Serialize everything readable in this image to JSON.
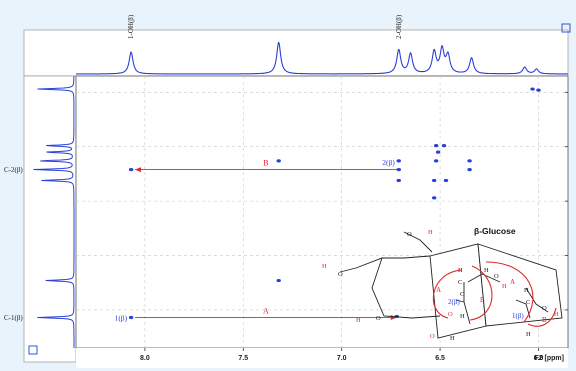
{
  "chart_data": {
    "type": "scatter",
    "subtype": "2D NMR COSY spectrum",
    "x_axis": {
      "unit_label": "F2 [ppm]",
      "range": [
        8.35,
        5.85
      ],
      "reversed": true,
      "ticks": [
        {
          "value": 8.0,
          "label": "8.0"
        },
        {
          "value": 7.5,
          "label": "7.5"
        },
        {
          "value": 7.0,
          "label": "7.0"
        },
        {
          "value": 6.5,
          "label": "6.5"
        },
        {
          "value": 6.0,
          "label": "6.0"
        }
      ]
    },
    "y_axis": {
      "range": [
        8.35,
        5.85
      ],
      "reversed": false,
      "tick_values": [
        8.0,
        7.5,
        7.0,
        6.5,
        6.0
      ]
    },
    "top_trace": {
      "baseline": 0,
      "peaks": [
        {
          "x": 8.07,
          "height": 0.55
        },
        {
          "x": 7.32,
          "height": 0.8
        },
        {
          "x": 6.71,
          "height": 0.6
        },
        {
          "x": 6.65,
          "height": 0.5
        },
        {
          "x": 6.53,
          "height": 0.55
        },
        {
          "x": 6.49,
          "height": 0.6
        },
        {
          "x": 6.46,
          "height": 0.45
        },
        {
          "x": 6.34,
          "height": 0.4
        },
        {
          "x": 6.07,
          "height": 0.17
        },
        {
          "x": 6.01,
          "height": 0.12
        }
      ],
      "peak_labels": [
        {
          "x": 8.07,
          "text": "1-OH(β)"
        },
        {
          "x": 6.71,
          "text": "2-OH(β)"
        }
      ]
    },
    "left_trace": {
      "peaks": [
        {
          "y": 5.97,
          "height": 0.9
        },
        {
          "y": 6.49,
          "height": 0.7
        },
        {
          "y": 6.55,
          "height": 0.7
        },
        {
          "y": 6.63,
          "height": 0.85
        },
        {
          "y": 6.71,
          "height": 1.0
        },
        {
          "y": 6.81,
          "height": 0.8
        },
        {
          "y": 7.73,
          "height": 0.7
        },
        {
          "y": 8.07,
          "height": 0.9
        }
      ],
      "labels": [
        {
          "y": 6.71,
          "text": "C-2(β)"
        },
        {
          "y": 8.07,
          "text": "C-1(β)"
        }
      ]
    },
    "cross_peaks": [
      {
        "x": 6.03,
        "y": 5.97
      },
      {
        "x": 6.0,
        "y": 5.98
      },
      {
        "x": 6.52,
        "y": 6.49
      },
      {
        "x": 6.48,
        "y": 6.49
      },
      {
        "x": 6.51,
        "y": 6.55
      },
      {
        "x": 7.32,
        "y": 6.63
      },
      {
        "x": 6.71,
        "y": 6.63
      },
      {
        "x": 6.52,
        "y": 6.63
      },
      {
        "x": 6.35,
        "y": 6.63
      },
      {
        "x": 6.71,
        "y": 6.71
      },
      {
        "x": 6.35,
        "y": 6.71
      },
      {
        "x": 8.07,
        "y": 6.71
      },
      {
        "x": 6.71,
        "y": 6.81
      },
      {
        "x": 6.53,
        "y": 6.81
      },
      {
        "x": 6.47,
        "y": 6.81
      },
      {
        "x": 6.53,
        "y": 6.97
      },
      {
        "x": 7.32,
        "y": 7.73
      },
      {
        "x": 8.07,
        "y": 8.07
      },
      {
        "x": 6.72,
        "y": 8.06
      }
    ],
    "annotations": [
      {
        "text": "2(β)",
        "x": 6.72,
        "y": 6.64
      },
      {
        "text": "1(β)",
        "x": 8.08,
        "y": 8.07
      }
    ],
    "arrows": [
      {
        "label": "B",
        "from": [
          6.72,
          6.71
        ],
        "to": [
          8.05,
          6.71
        ]
      },
      {
        "label": "A",
        "from": [
          8.05,
          8.07
        ],
        "to": [
          6.72,
          8.07
        ]
      }
    ],
    "inset": {
      "title": "β-Glucose",
      "atom_labels": [
        "O",
        "H",
        "H",
        "O",
        "O",
        "H",
        "O",
        "H",
        "C",
        "C",
        "H",
        "H",
        "O",
        "H",
        "O",
        "H",
        "C",
        "H",
        "H",
        "O",
        "H"
      ],
      "ring_labels": [
        "2(β)",
        "1(β)"
      ],
      "arc_labels": [
        "A",
        "B",
        "A",
        "B"
      ]
    }
  }
}
